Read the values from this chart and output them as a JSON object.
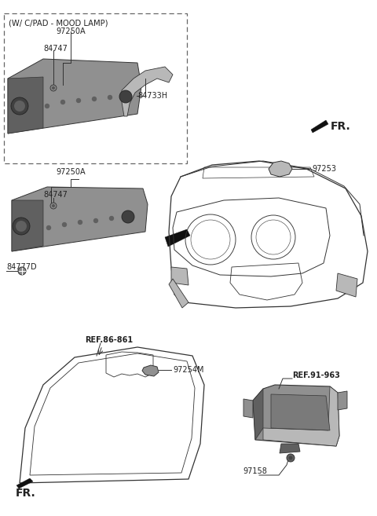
{
  "bg_color": "#ffffff",
  "lc": "#333333",
  "tc": "#222222",
  "gray_part": "#909090",
  "gray_dark": "#606060",
  "gray_light": "#b8b8b8",
  "labels": {
    "mood_lamp_box": "(W/ C/PAD - MOOD LAMP)",
    "p97250A_top": "97250A",
    "p84747_top": "84747",
    "p84733H": "84733H",
    "p97250A_mid": "97250A",
    "p84747_mid": "84747",
    "p84777D": "84777D",
    "p97253": "97253",
    "p97254M": "97254M",
    "p97158": "97158",
    "ref_86_861": "REF.86-861",
    "ref_91_963": "REF.91-963",
    "fr_top": "FR.",
    "fr_bot": "FR."
  },
  "fs": 7.0,
  "fs_ref": 7.0,
  "fs_fr": 10.0
}
